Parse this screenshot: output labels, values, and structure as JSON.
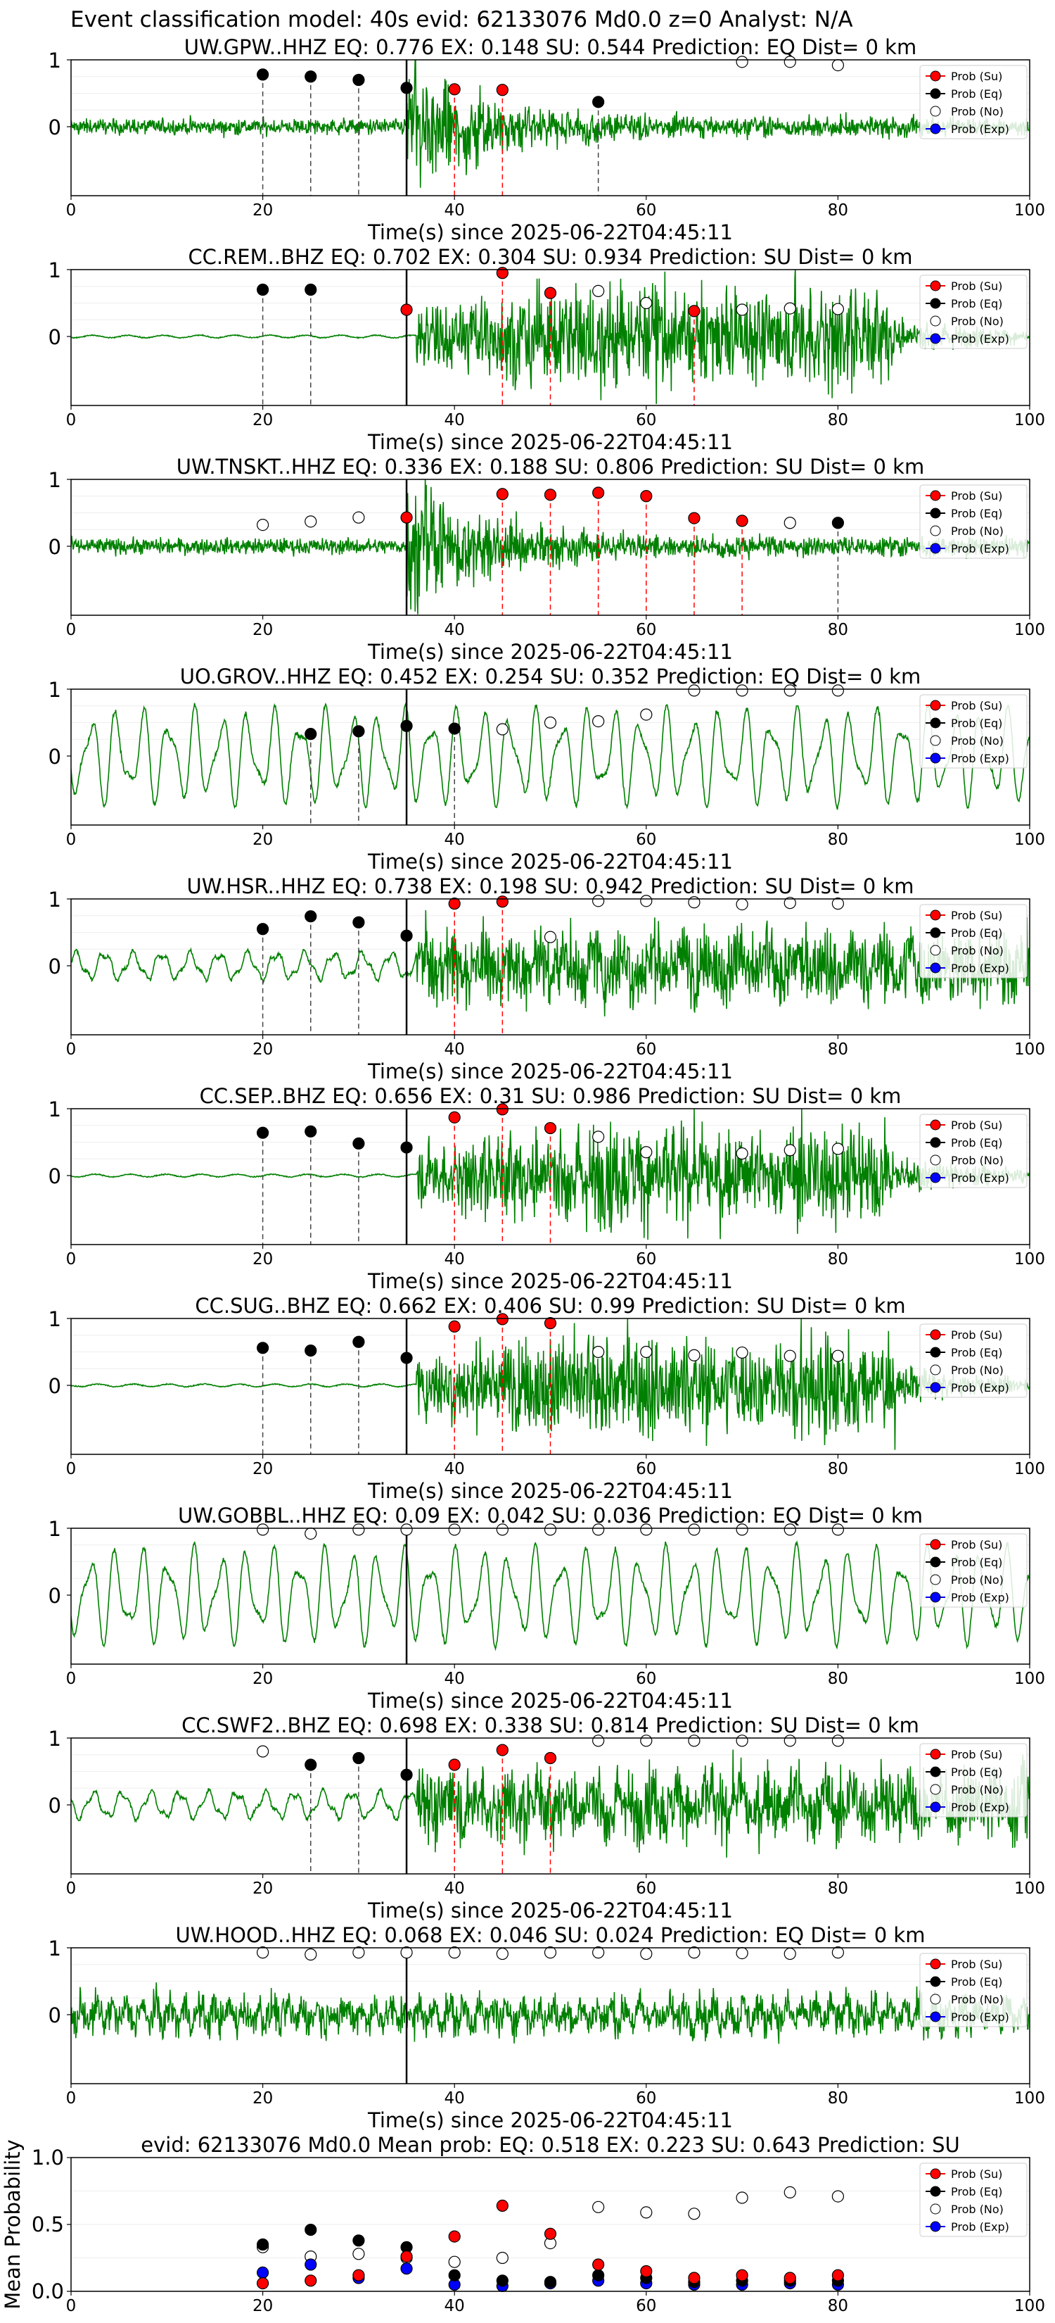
{
  "suptitle": "Event classification model: 40s evid: 62133076 Md0.0 z=0 Analyst: N/A",
  "legend_labels": [
    "Prob (Su)",
    "Prob (Eq)",
    "Prob (No)",
    "Prob (Exp)"
  ],
  "colors": {
    "waveform": "#008000",
    "su": "#ff0000",
    "eq": "#000000",
    "no": "#ffffff",
    "exp": "#0000ff",
    "marker_line_su": "#ff0000",
    "marker_line_eq": "#444444"
  },
  "chart_data": [
    {
      "type": "line",
      "title": "UW.GPW..HHZ   EQ: 0.776  EX: 0.148  SU: 0.544   Prediction: EQ    Dist= 0 km",
      "xlabel": "Time(s) since 2025-06-22T04:45:11",
      "xlim": [
        0,
        100
      ],
      "xticks": [
        "0",
        "20",
        "40",
        "60",
        "80",
        "100"
      ],
      "yticks": [
        "1",
        "0"
      ],
      "arrival_time": 35,
      "waveform_style": "noisy",
      "onset": 35,
      "su": [
        [
          40,
          0.56
        ],
        [
          45,
          0.55
        ]
      ],
      "eq": [
        [
          20,
          0.78
        ],
        [
          25,
          0.75
        ],
        [
          30,
          0.7
        ],
        [
          35,
          0.58
        ],
        [
          55,
          0.37
        ]
      ],
      "no": [
        [
          70,
          0.97
        ],
        [
          75,
          0.97
        ],
        [
          80,
          0.92
        ]
      ],
      "exp": []
    },
    {
      "type": "line",
      "title": "CC.REM..BHZ   EQ: 0.702  EX: 0.304  SU: 0.934   Prediction: SU    Dist= 0 km",
      "xlabel": "Time(s) since 2025-06-22T04:45:11",
      "xlim": [
        0,
        100
      ],
      "xticks": [
        "0",
        "20",
        "40",
        "60",
        "80",
        "100"
      ],
      "yticks": [
        "1",
        "0"
      ],
      "arrival_time": 35,
      "waveform_style": "quiet-then-burst",
      "onset": 36,
      "su": [
        [
          35,
          0.4
        ],
        [
          45,
          0.95
        ],
        [
          50,
          0.65
        ],
        [
          65,
          0.38
        ]
      ],
      "eq": [
        [
          20,
          0.7
        ],
        [
          25,
          0.7
        ]
      ],
      "no": [
        [
          55,
          0.68
        ],
        [
          60,
          0.5
        ],
        [
          70,
          0.4
        ],
        [
          75,
          0.42
        ],
        [
          80,
          0.41
        ]
      ],
      "exp": []
    },
    {
      "type": "line",
      "title": "UW.TNSKT..HHZ   EQ: 0.336  EX: 0.188  SU: 0.806   Prediction: SU    Dist= 0 km",
      "xlabel": "Time(s) since 2025-06-22T04:45:11",
      "xlim": [
        0,
        100
      ],
      "xticks": [
        "0",
        "20",
        "40",
        "60",
        "80",
        "100"
      ],
      "yticks": [
        "1",
        "0"
      ],
      "arrival_time": 35,
      "waveform_style": "noisy",
      "onset": 35,
      "su": [
        [
          35,
          0.43
        ],
        [
          45,
          0.78
        ],
        [
          50,
          0.77
        ],
        [
          55,
          0.8
        ],
        [
          60,
          0.75
        ],
        [
          65,
          0.42
        ],
        [
          70,
          0.38
        ]
      ],
      "eq": [
        [
          80,
          0.35
        ]
      ],
      "no": [
        [
          20,
          0.32
        ],
        [
          25,
          0.37
        ],
        [
          30,
          0.43
        ],
        [
          75,
          0.35
        ]
      ],
      "exp": []
    },
    {
      "type": "line",
      "title": "UO.GROV..HHZ   EQ: 0.452  EX: 0.254  SU: 0.352   Prediction: EQ    Dist= 0 km",
      "xlabel": "Time(s) since 2025-06-22T04:45:11",
      "xlim": [
        0,
        100
      ],
      "xticks": [
        "0",
        "20",
        "40",
        "60",
        "80",
        "100"
      ],
      "yticks": [
        "1",
        "0"
      ],
      "arrival_time": 35,
      "waveform_style": "long-period",
      "onset": 35,
      "su": [],
      "eq": [
        [
          25,
          0.33
        ],
        [
          30,
          0.37
        ],
        [
          35,
          0.45
        ],
        [
          40,
          0.41
        ]
      ],
      "no": [
        [
          45,
          0.4
        ],
        [
          50,
          0.5
        ],
        [
          55,
          0.52
        ],
        [
          60,
          0.62
        ],
        [
          65,
          0.98
        ],
        [
          70,
          0.98
        ],
        [
          75,
          0.98
        ],
        [
          80,
          0.98
        ]
      ],
      "exp": []
    },
    {
      "type": "line",
      "title": "UW.HSR..HHZ   EQ: 0.738  EX: 0.198  SU: 0.942   Prediction: SU    Dist= 0 km",
      "xlabel": "Time(s) since 2025-06-22T04:45:11",
      "xlim": [
        0,
        100
      ],
      "xticks": [
        "0",
        "20",
        "40",
        "60",
        "80",
        "100"
      ],
      "yticks": [
        "1",
        "0"
      ],
      "arrival_time": 35,
      "waveform_style": "wavy-then-burst",
      "onset": 36,
      "su": [
        [
          40,
          0.93
        ],
        [
          45,
          0.96
        ]
      ],
      "eq": [
        [
          20,
          0.55
        ],
        [
          25,
          0.74
        ],
        [
          30,
          0.65
        ],
        [
          35,
          0.45
        ]
      ],
      "no": [
        [
          50,
          0.43
        ],
        [
          55,
          0.97
        ],
        [
          60,
          0.97
        ],
        [
          65,
          0.95
        ],
        [
          70,
          0.92
        ],
        [
          75,
          0.94
        ],
        [
          80,
          0.93
        ]
      ],
      "exp": []
    },
    {
      "type": "line",
      "title": "CC.SEP..BHZ   EQ: 0.656  EX: 0.31  SU: 0.986   Prediction: SU    Dist= 0 km",
      "xlabel": "Time(s) since 2025-06-22T04:45:11",
      "xlim": [
        0,
        100
      ],
      "xticks": [
        "0",
        "20",
        "40",
        "60",
        "80",
        "100"
      ],
      "yticks": [
        "1",
        "0"
      ],
      "arrival_time": 35,
      "waveform_style": "quiet-then-burst",
      "onset": 36,
      "su": [
        [
          40,
          0.87
        ],
        [
          45,
          0.99
        ],
        [
          50,
          0.71
        ]
      ],
      "eq": [
        [
          20,
          0.64
        ],
        [
          25,
          0.66
        ],
        [
          30,
          0.48
        ],
        [
          35,
          0.42
        ]
      ],
      "no": [
        [
          55,
          0.58
        ],
        [
          60,
          0.35
        ],
        [
          70,
          0.33
        ],
        [
          75,
          0.38
        ],
        [
          80,
          0.4
        ]
      ],
      "exp": []
    },
    {
      "type": "line",
      "title": "CC.SUG..BHZ   EQ: 0.662  EX: 0.406  SU: 0.99   Prediction: SU    Dist= 0 km",
      "xlabel": "Time(s) since 2025-06-22T04:45:11",
      "xlim": [
        0,
        100
      ],
      "xticks": [
        "0",
        "20",
        "40",
        "60",
        "80",
        "100"
      ],
      "yticks": [
        "1",
        "0"
      ],
      "arrival_time": 35,
      "waveform_style": "quiet-then-burst",
      "onset": 36,
      "su": [
        [
          40,
          0.88
        ],
        [
          45,
          0.99
        ],
        [
          50,
          0.93
        ]
      ],
      "eq": [
        [
          20,
          0.56
        ],
        [
          25,
          0.52
        ],
        [
          30,
          0.65
        ],
        [
          35,
          0.41
        ]
      ],
      "no": [
        [
          55,
          0.5
        ],
        [
          60,
          0.5
        ],
        [
          65,
          0.45
        ],
        [
          70,
          0.49
        ],
        [
          75,
          0.44
        ],
        [
          80,
          0.44
        ]
      ],
      "exp": []
    },
    {
      "type": "line",
      "title": "UW.GOBBL..HHZ   EQ: 0.09  EX: 0.042  SU: 0.036   Prediction: EQ    Dist= 0 km",
      "xlabel": "Time(s) since 2025-06-22T04:45:11",
      "xlim": [
        0,
        100
      ],
      "xticks": [
        "0",
        "20",
        "40",
        "60",
        "80",
        "100"
      ],
      "yticks": [
        "1",
        "0"
      ],
      "arrival_time": 35,
      "waveform_style": "long-period",
      "onset": 35,
      "su": [],
      "eq": [],
      "no": [
        [
          20,
          0.98
        ],
        [
          25,
          0.92
        ],
        [
          30,
          0.98
        ],
        [
          35,
          0.98
        ],
        [
          40,
          0.98
        ],
        [
          45,
          0.98
        ],
        [
          50,
          0.98
        ],
        [
          55,
          0.98
        ],
        [
          60,
          0.98
        ],
        [
          65,
          0.98
        ],
        [
          70,
          0.98
        ],
        [
          75,
          0.98
        ],
        [
          80,
          0.98
        ]
      ],
      "exp": []
    },
    {
      "type": "line",
      "title": "CC.SWF2..BHZ   EQ: 0.698  EX: 0.338  SU: 0.814   Prediction: SU    Dist= 0 km",
      "xlabel": "Time(s) since 2025-06-22T04:45:11",
      "xlim": [
        0,
        100
      ],
      "xticks": [
        "0",
        "20",
        "40",
        "60",
        "80",
        "100"
      ],
      "yticks": [
        "1",
        "0"
      ],
      "arrival_time": 35,
      "waveform_style": "wavy-then-burst",
      "onset": 36,
      "su": [
        [
          40,
          0.6
        ],
        [
          45,
          0.82
        ],
        [
          50,
          0.7
        ]
      ],
      "eq": [
        [
          25,
          0.6
        ],
        [
          30,
          0.7
        ],
        [
          35,
          0.45
        ]
      ],
      "no": [
        [
          20,
          0.8
        ],
        [
          55,
          0.96
        ],
        [
          60,
          0.96
        ],
        [
          65,
          0.96
        ],
        [
          70,
          0.96
        ],
        [
          75,
          0.96
        ],
        [
          80,
          0.96
        ]
      ],
      "exp": []
    },
    {
      "type": "line",
      "title": "UW.HOOD..HHZ   EQ: 0.068  EX: 0.046  SU: 0.024   Prediction: EQ    Dist= 0 km",
      "xlabel": "Time(s) since 2025-06-22T04:45:11",
      "xlim": [
        0,
        100
      ],
      "xticks": [
        "0",
        "20",
        "40",
        "60",
        "80",
        "100"
      ],
      "yticks": [
        "1",
        "0"
      ],
      "arrival_time": 35,
      "waveform_style": "uniform-noise",
      "onset": 35,
      "su": [],
      "eq": [],
      "no": [
        [
          20,
          0.93
        ],
        [
          25,
          0.9
        ],
        [
          30,
          0.93
        ],
        [
          35,
          0.93
        ],
        [
          40,
          0.93
        ],
        [
          45,
          0.91
        ],
        [
          50,
          0.93
        ],
        [
          55,
          0.93
        ],
        [
          60,
          0.91
        ],
        [
          65,
          0.93
        ],
        [
          70,
          0.92
        ],
        [
          75,
          0.91
        ],
        [
          80,
          0.93
        ]
      ],
      "exp": []
    },
    {
      "type": "scatter",
      "title": "evid: 62133076  Md0.0   Mean prob:   EQ: 0.518  EX: 0.223  SU: 0.643   Prediction: SU",
      "xlabel": "",
      "ylabel": "Mean Probability",
      "xlim": [
        0,
        100
      ],
      "ylim": [
        0,
        1
      ],
      "xticks": [
        "0",
        "20",
        "40",
        "60",
        "80",
        "100"
      ],
      "yticks": [
        "1.0",
        "0.5",
        "0.0"
      ],
      "su": [
        [
          20,
          0.06
        ],
        [
          25,
          0.08
        ],
        [
          30,
          0.12
        ],
        [
          35,
          0.26
        ],
        [
          40,
          0.41
        ],
        [
          45,
          0.64
        ],
        [
          50,
          0.43
        ],
        [
          55,
          0.2
        ],
        [
          60,
          0.15
        ],
        [
          65,
          0.1
        ],
        [
          70,
          0.12
        ],
        [
          75,
          0.1
        ],
        [
          80,
          0.12
        ]
      ],
      "eq": [
        [
          20,
          0.35
        ],
        [
          25,
          0.46
        ],
        [
          30,
          0.38
        ],
        [
          35,
          0.33
        ],
        [
          40,
          0.12
        ],
        [
          45,
          0.08
        ],
        [
          50,
          0.07
        ],
        [
          55,
          0.12
        ],
        [
          60,
          0.1
        ],
        [
          65,
          0.07
        ],
        [
          70,
          0.08
        ],
        [
          75,
          0.08
        ],
        [
          80,
          0.08
        ]
      ],
      "no": [
        [
          20,
          0.33
        ],
        [
          25,
          0.26
        ],
        [
          30,
          0.28
        ],
        [
          35,
          0.25
        ],
        [
          40,
          0.22
        ],
        [
          45,
          0.25
        ],
        [
          50,
          0.36
        ],
        [
          55,
          0.63
        ],
        [
          60,
          0.59
        ],
        [
          65,
          0.58
        ],
        [
          70,
          0.7
        ],
        [
          75,
          0.74
        ],
        [
          80,
          0.71
        ]
      ],
      "exp": [
        [
          20,
          0.14
        ],
        [
          25,
          0.2
        ],
        [
          30,
          0.1
        ],
        [
          35,
          0.17
        ],
        [
          40,
          0.05
        ],
        [
          45,
          0.04
        ],
        [
          50,
          0.06
        ],
        [
          55,
          0.08
        ],
        [
          60,
          0.06
        ],
        [
          65,
          0.05
        ],
        [
          70,
          0.05
        ],
        [
          75,
          0.06
        ],
        [
          80,
          0.05
        ]
      ]
    }
  ]
}
